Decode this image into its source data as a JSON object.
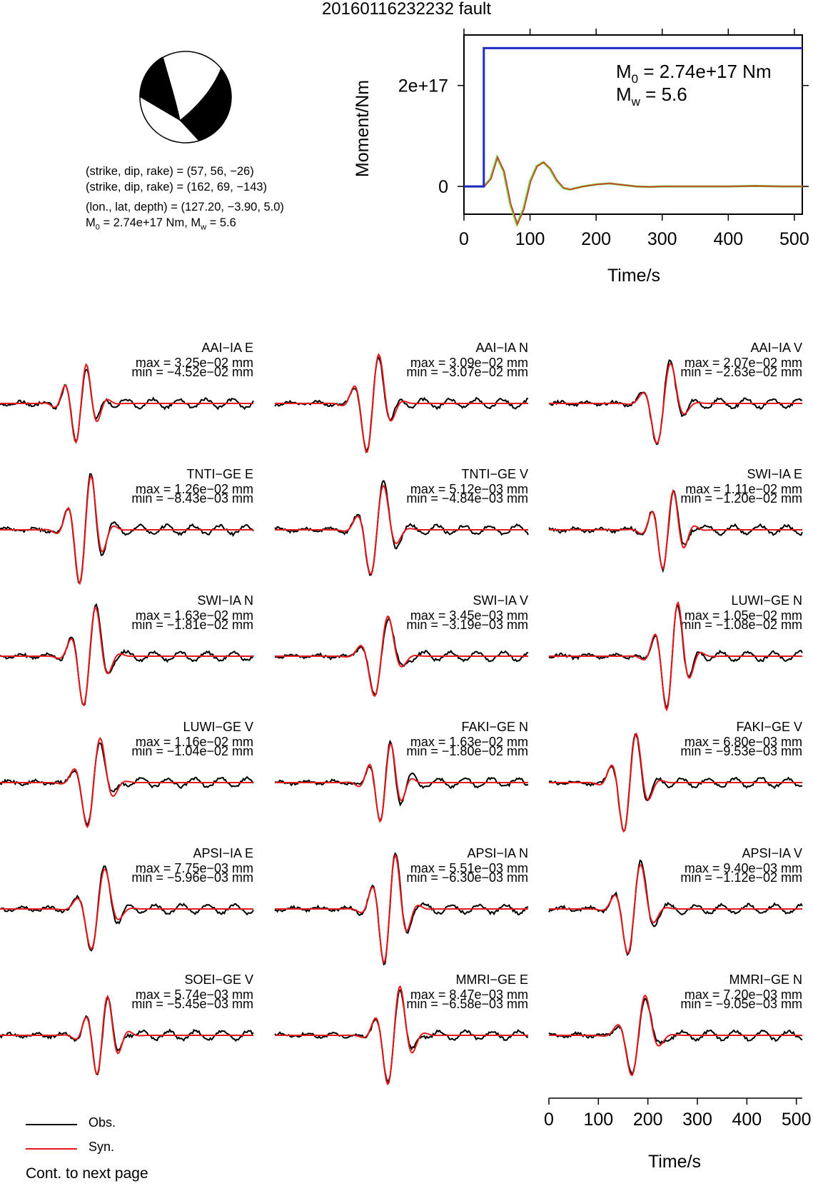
{
  "title": "20160116232232 fault",
  "mechanism": {
    "np1": "(strike, dip, rake) = (57, 56, −26)",
    "np2": "(strike, dip, rake) = (162, 69, −143)",
    "location": "(lon., lat, depth) = (127.20, −3.90, 5.0)",
    "m0_prefix": "M",
    "m0_sub": "0",
    "m0_rest": " = 2.74e+17 Nm, M",
    "mw_sub": "w",
    "mw_rest": " = 5.6"
  },
  "stf": {
    "ylabel": "Moment/Nm",
    "xlabel": "Time/s",
    "xticks": [
      0,
      100,
      200,
      300,
      400,
      500
    ],
    "ytick_labels": [
      "0",
      "2e+17"
    ],
    "ytick_values": [
      0,
      2e+17
    ],
    "m0_label_main": "M",
    "m0_label_sub": "0",
    "m0_label_rest": " = 2.74e+17 Nm",
    "mw_label_main": "M",
    "mw_label_sub": "w",
    "mw_label_rest": " = 5.6"
  },
  "legend": {
    "obs": "Obs.",
    "syn": "Syn.",
    "obs_color": "#000000",
    "syn_color": "#e41a1c",
    "continued": "Cont. to next page"
  },
  "wave_axis": {
    "xlabel": "Time/s",
    "xticks": [
      0,
      100,
      200,
      300,
      400,
      500
    ]
  },
  "colors": {
    "moment_rate": "#6fcf3a",
    "cumulative_moment": "#1f28c9",
    "fill_dark": "#000000"
  },
  "chart_data": [
    {
      "type": "line",
      "title": "",
      "xlabel": "Time/s",
      "ylabel": "Moment/Nm",
      "xlim": [
        0,
        512
      ],
      "ylim": [
        -5.5e+16,
        3e+17
      ],
      "series": [
        {
          "name": "Cumulative moment",
          "x": [
            0,
            30,
            30,
            512
          ],
          "y": [
            0,
            0,
            2.74e+17,
            2.74e+17
          ]
        },
        {
          "name": "Moment rate (scaled)",
          "x": [
            0,
            20,
            30,
            40,
            50,
            60,
            70,
            80,
            90,
            100,
            110,
            120,
            130,
            140,
            150,
            160,
            180,
            200,
            220,
            240,
            260,
            280,
            300,
            350,
            400,
            440,
            480,
            512
          ],
          "y": [
            0,
            0,
            0,
            1.5e+16,
            5.8e+16,
            3e+16,
            -3.5e+16,
            -7.5e+16,
            -4.5e+16,
            1e+16,
            4e+16,
            4.8e+16,
            3.5e+16,
            1.2e+16,
            -3000000000000000.0,
            -6000000000000000.0,
            0,
            4000000000000000.0,
            6000000000000000.0,
            3000000000000000.0,
            0,
            -1000000000000000.0,
            0,
            0,
            0,
            1000000000000000.0,
            0,
            0
          ]
        }
      ]
    },
    {
      "type": "line",
      "xlabel": "Time/s",
      "xlim": [
        0,
        512
      ],
      "traces": [
        {
          "station": "AAI−IA E",
          "max": "max = 3.25e−02 mm",
          "min": "min = −4.52e−02 mm"
        },
        {
          "station": "AAI−IA N",
          "max": "max = 3.09e−02 mm",
          "min": "min = −3.07e−02 mm"
        },
        {
          "station": "AAI−IA V",
          "max": "max = 2.07e−02 mm",
          "min": "min = −2.63e−02 mm"
        },
        {
          "station": "TNTI−GE E",
          "max": "max = 1.26e−02 mm",
          "min": "min = −8.43e−03 mm"
        },
        {
          "station": "TNTI−GE V",
          "max": "max = 5.12e−03 mm",
          "min": "min = −4.84e−03 mm"
        },
        {
          "station": "SWI−IA E",
          "max": "max = 1.11e−02 mm",
          "min": "min = −1.20e−02 mm"
        },
        {
          "station": "SWI−IA N",
          "max": "max = 1.63e−02 mm",
          "min": "min = −1.81e−02 mm"
        },
        {
          "station": "SWI−IA V",
          "max": "max = 3.45e−03 mm",
          "min": "min = −3.19e−03 mm"
        },
        {
          "station": "LUWI−GE N",
          "max": "max = 1.05e−02 mm",
          "min": "min = −1.08e−02 mm"
        },
        {
          "station": "LUWI−GE V",
          "max": "max = 1.16e−02 mm",
          "min": "min = −1.04e−02 mm"
        },
        {
          "station": "FAKI−GE N",
          "max": "max = 1.63e−02 mm",
          "min": "min = −1.80e−02 mm"
        },
        {
          "station": "FAKI−GE V",
          "max": "max = 6.80e−03 mm",
          "min": "min = −9.53e−03 mm"
        },
        {
          "station": "APSI−IA E",
          "max": "max = 7.75e−03 mm",
          "min": "min = −5.96e−03 mm"
        },
        {
          "station": "APSI−IA N",
          "max": "max = 5.51e−03 mm",
          "min": "min = −6.30e−03 mm"
        },
        {
          "station": "APSI−IA V",
          "max": "max = 9.40e−03 mm",
          "min": "min = −1.12e−02 mm"
        },
        {
          "station": "SOEI−GE V",
          "max": "max = 5.74e−03 mm",
          "min": "min = −5.45e−03 mm"
        },
        {
          "station": "MMRI−GE E",
          "max": "max = 8.47e−03 mm",
          "min": "min = −6.58e−03 mm"
        },
        {
          "station": "MMRI−GE N",
          "max": "max = 7.20e−03 mm",
          "min": "min = −9.05e−03 mm"
        }
      ]
    }
  ]
}
